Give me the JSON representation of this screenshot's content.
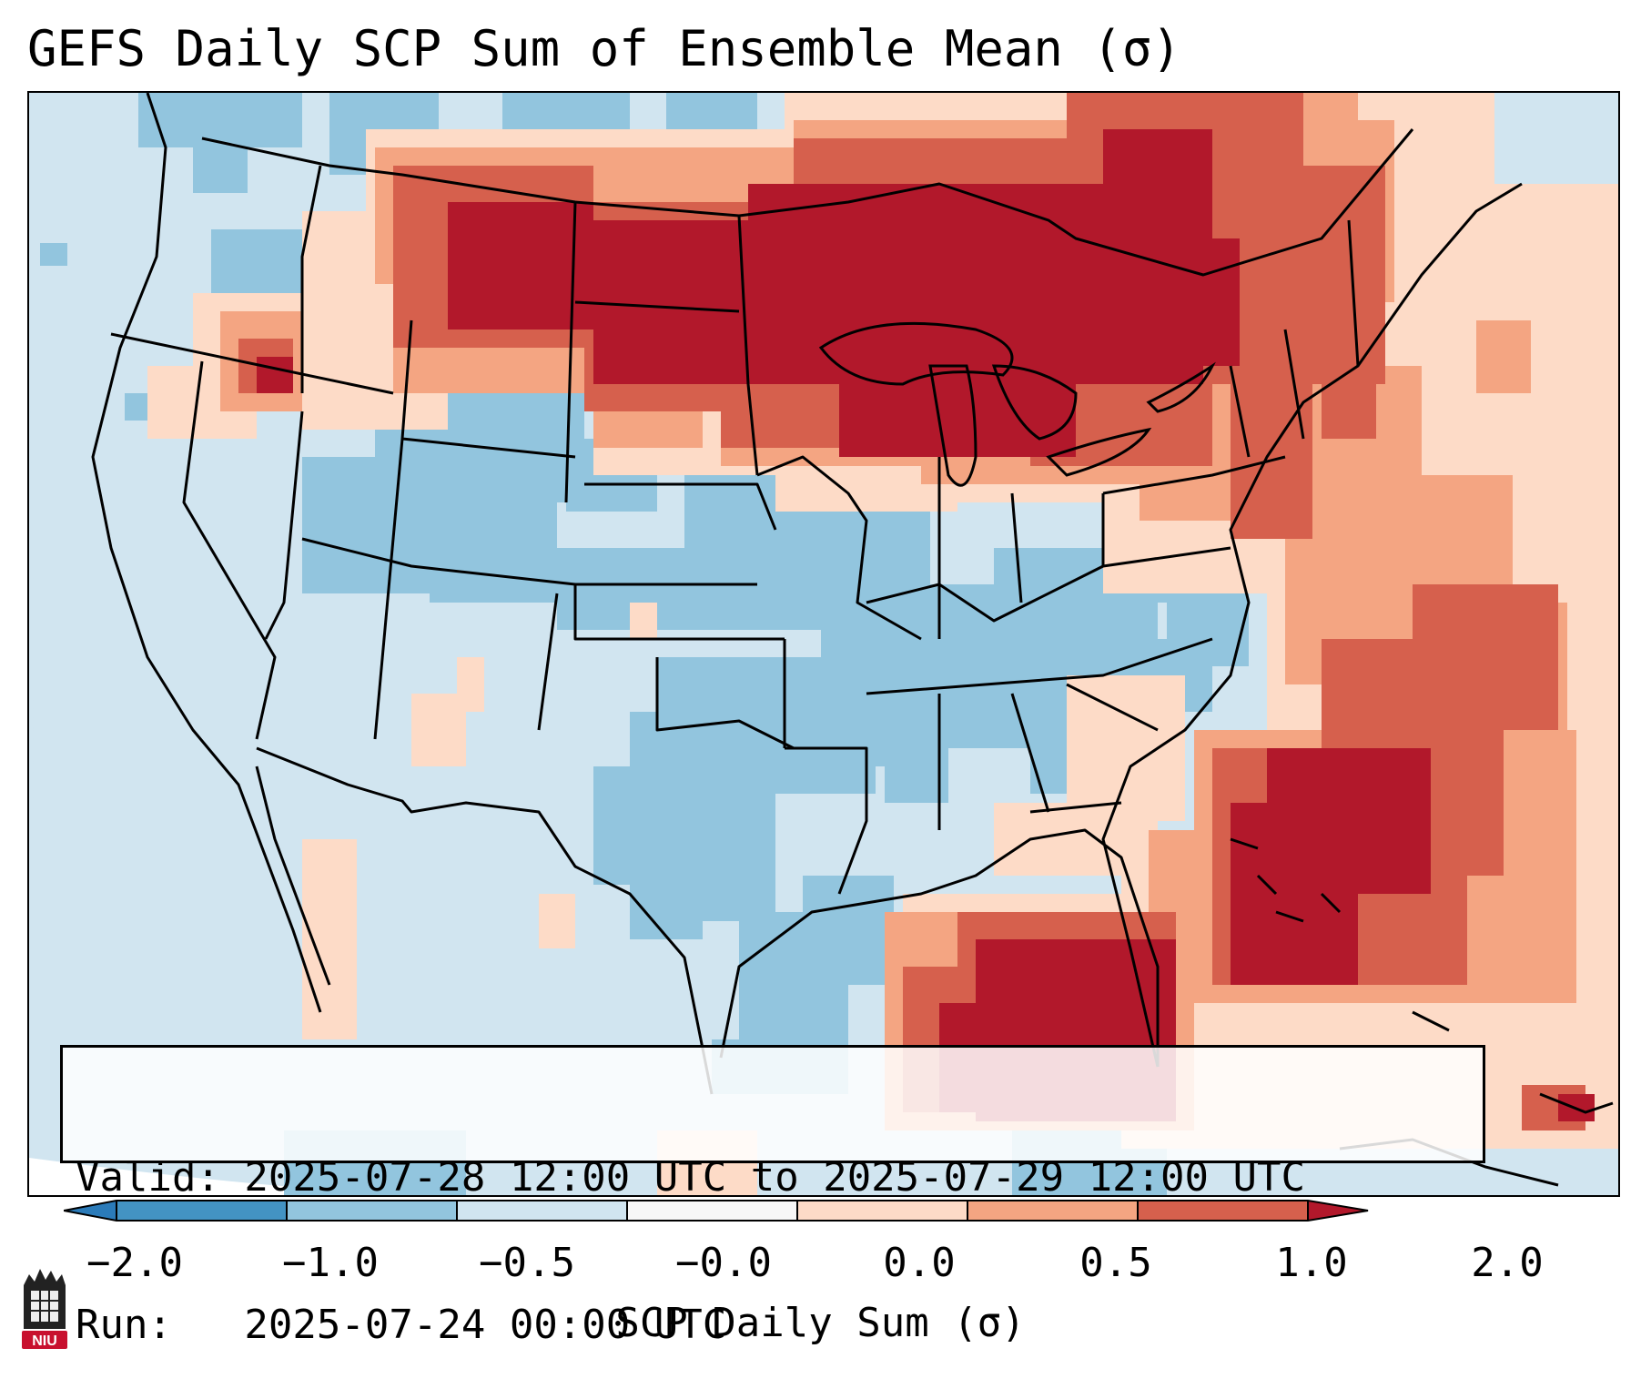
{
  "title": "GEFS Daily SCP Sum of Ensemble Mean (σ)",
  "info": {
    "valid_line": "Valid: 2025-07-28 12:00 UTC to 2025-07-29 12:00 UTC",
    "run_line": "Run:   2025-07-24 00:00 UTC"
  },
  "colorbar": {
    "label": "SCP Daily Sum (σ)",
    "ticks": [
      "−2.0",
      "−1.0",
      "−0.5",
      "−0.0",
      "0.0",
      "0.5",
      "1.0",
      "2.0"
    ],
    "colors": [
      "#2b7bb9",
      "#92c5de",
      "#d1e5f0",
      "#f7f7f7",
      "#fddbc7",
      "#f4a582",
      "#d6604d",
      "#b2182b"
    ]
  },
  "logo": {
    "text": "NIU",
    "color": "#c8102e"
  },
  "map": {
    "background_color": "#d1e5f0",
    "legend_levels": {
      "strong_negative": "#92c5de",
      "weak_negative": "#d1e5f0",
      "weak_positive": "#fddbc7",
      "moderate_positive": "#f4a582",
      "positive": "#d6604d",
      "strong_positive": "#b2182b"
    }
  }
}
